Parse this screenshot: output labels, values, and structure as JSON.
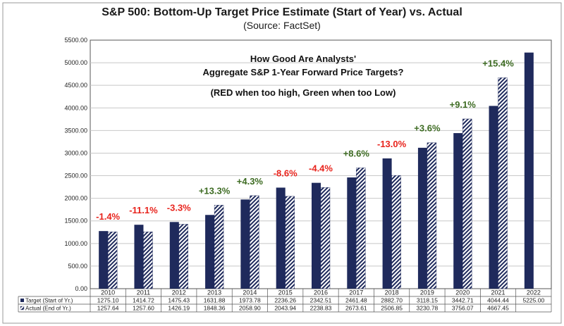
{
  "chart_data": {
    "type": "bar",
    "title": "S&P 500: Bottom-Up Target Price Estimate (Start of Year) vs. Actual",
    "subtitle": "(Source: FactSet)",
    "annotation_lines": [
      "How Good Are Analysts'",
      "Aggregate S&P 1-Year Forward Price Targets?",
      "(RED when too high, Green when too Low)"
    ],
    "categories": [
      "2010",
      "2011",
      "2012",
      "2013",
      "2014",
      "2015",
      "2016",
      "2017",
      "2018",
      "2019",
      "2020",
      "2021",
      "2022"
    ],
    "series": [
      {
        "name": "Target (Start of Yr.)",
        "values": [
          1275.1,
          1414.72,
          1475.43,
          1631.88,
          1973.78,
          2236.26,
          2342.51,
          2461.48,
          2882.7,
          3118.15,
          3442.71,
          4044.44,
          5225.0
        ],
        "labels": [
          "1275.10",
          "1414.72",
          "1475.43",
          "1631.88",
          "1973.78",
          "2236.26",
          "2342.51",
          "2461.48",
          "2882.70",
          "3118.15",
          "3442.71",
          "4044.44",
          "5225.00"
        ],
        "color": "#1f2a5c"
      },
      {
        "name": "Actual (End of Yr.)",
        "values": [
          1257.64,
          1257.6,
          1426.19,
          1848.36,
          2058.9,
          2043.94,
          2238.83,
          2673.61,
          2506.85,
          3230.78,
          3756.07,
          4667.45,
          null
        ],
        "labels": [
          "1257.64",
          "1257.60",
          "1426.19",
          "1848.36",
          "2058.90",
          "2043.94",
          "2238.83",
          "2673.61",
          "2506.85",
          "3230.78",
          "3756.07",
          "4667.45",
          ""
        ],
        "color": "#1f2a5c",
        "pattern": "diagonal-hatch"
      }
    ],
    "pct_labels": [
      "-1.4%",
      "-11.1%",
      "-3.3%",
      "+13.3%",
      "+4.3%",
      "-8.6%",
      "-4.4%",
      "+8.6%",
      "-13.0%",
      "+3.6%",
      "+9.1%",
      "+15.4%",
      ""
    ],
    "pct_colors": {
      "negative": "#e8231c",
      "positive": "#3d6b22"
    },
    "y_ticks": [
      "0.00",
      "500.00",
      "1000.00",
      "1500.00",
      "2000.00",
      "2500.00",
      "3000.00",
      "3500.00",
      "4000.00",
      "4500.00",
      "5000.00",
      "5500.00"
    ],
    "ylim": [
      0,
      5500
    ],
    "grid": true,
    "legend": "data-table-below"
  }
}
